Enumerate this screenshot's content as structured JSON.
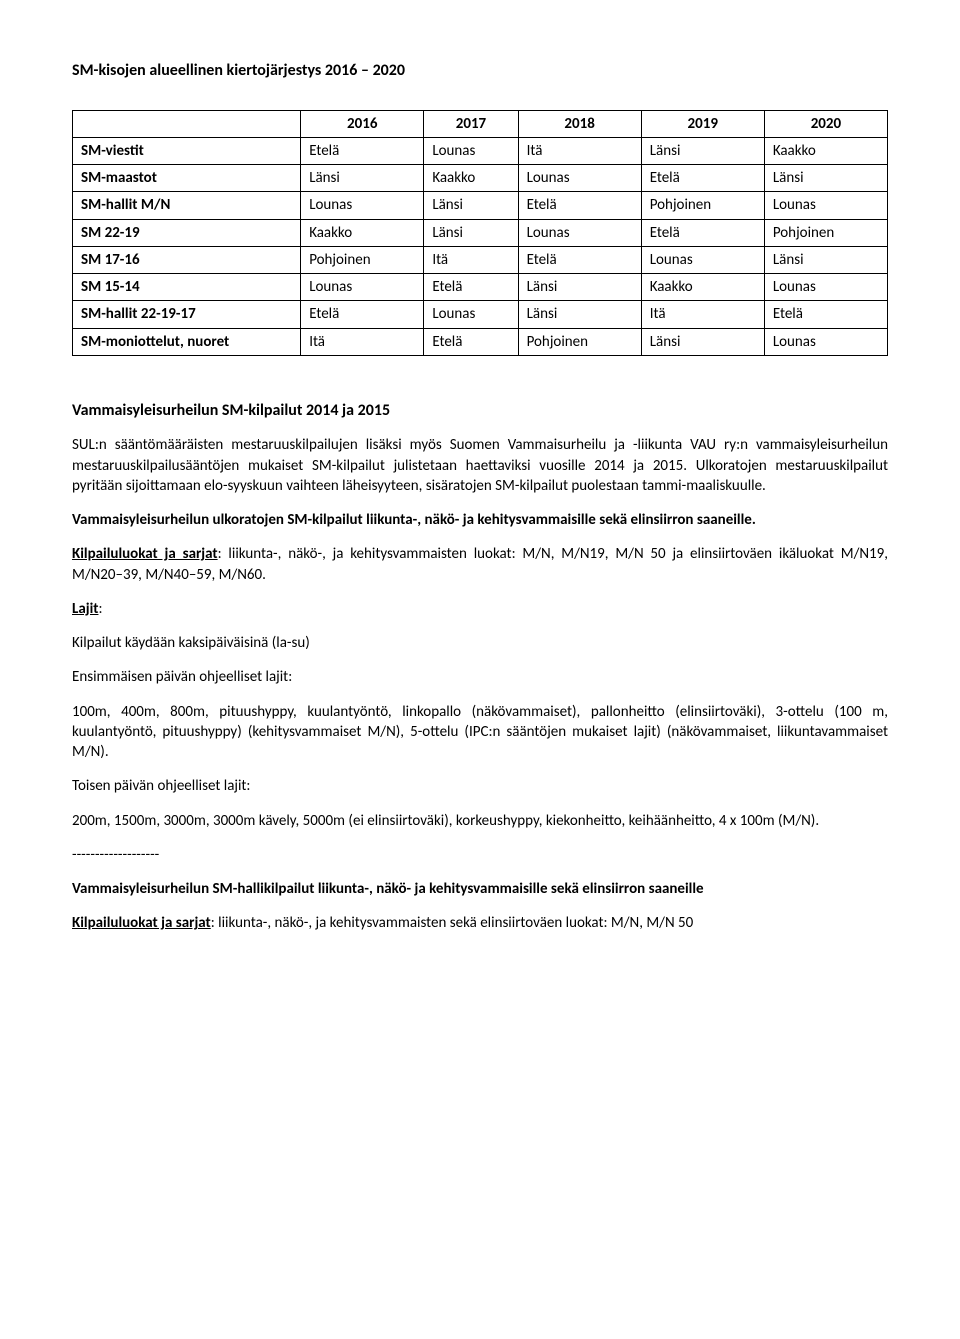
{
  "title": "SM-kisojen alueellinen kiertojärjestys 2016 – 2020",
  "table": {
    "columns": [
      "",
      "2016",
      "2017",
      "2018",
      "2019",
      "2020"
    ],
    "rows": [
      [
        "SM-viestit",
        "Etelä",
        "Lounas",
        "Itä",
        "Länsi",
        "Kaakko"
      ],
      [
        "SM-maastot",
        "Länsi",
        "Kaakko",
        "Lounas",
        "Etelä",
        "Länsi"
      ],
      [
        "SM-hallit M/N",
        "Lounas",
        "Länsi",
        "Etelä",
        "Pohjoinen",
        "Lounas"
      ],
      [
        "SM 22-19",
        "Kaakko",
        "Länsi",
        "Lounas",
        "Etelä",
        "Pohjoinen"
      ],
      [
        "SM 17-16",
        "Pohjoinen",
        "Itä",
        "Etelä",
        "Lounas",
        "Länsi"
      ],
      [
        "SM 15-14",
        "Lounas",
        "Etelä",
        "Länsi",
        "Kaakko",
        "Lounas"
      ],
      [
        "SM-hallit 22-19-17",
        "Etelä",
        "Lounas",
        "Länsi",
        "Itä",
        "Etelä"
      ],
      [
        "SM-moniottelut, nuoret",
        "Itä",
        "Etelä",
        "Pohjoinen",
        "Länsi",
        "Lounas"
      ]
    ],
    "border_color": "#000000"
  },
  "section1": {
    "heading": "Vammaisyleisurheilun SM-kilpailut 2014 ja 2015",
    "para1": "SUL:n sääntömääräisten mestaruuskilpailujen lisäksi myös Suomen Vammaisurheilu ja -liikunta VAU ry:n vammaisyleisurheilun mestaruuskilpailusääntöjen mukaiset SM-kilpailut julistetaan haettaviksi vuosille 2014 ja 2015. Ulkoratojen mestaruuskilpailut pyritään sijoittamaan elo-syyskuun vaihteen läheisyyteen, sisäratojen SM-kilpailut puolestaan tammi-maaliskuulle.",
    "para2_bold": "Vammaisyleisurheilun ulkoratojen SM-kilpailut liikunta-, näkö- ja kehitysvammaisille sekä elinsiirron saaneille.",
    "para3_lead": "Kilpailuluokat ja sarjat",
    "para3_rest": ": liikunta-, näkö-, ja kehitysvammaisten luokat: M/N, M/N19, M/N 50 ja elinsiirtoväen ikäluokat M/N19, M/N20–39, M/N40–59, M/N60.",
    "lajit_label": "Lajit",
    "lajit_colon": ":",
    "para4": "Kilpailut käydään kaksipäiväisinä (la-su)",
    "para5": "Ensimmäisen päivän ohjeelliset lajit:",
    "para6": "100m, 400m, 800m, pituushyppy, kuulantyöntö, linkopallo (näkövammaiset), pallonheitto (elinsiirtoväki), 3-ottelu (100 m, kuulantyöntö, pituushyppy) (kehitysvammaiset M/N), 5-ottelu (IPC:n sääntöjen mukaiset lajit) (näkövammaiset, liikuntavammaiset M/N).",
    "para7": "Toisen päivän ohjeelliset lajit:",
    "para8": "200m, 1500m, 3000m, 3000m kävely, 5000m (ei elinsiirtoväki), korkeushyppy, kiekonheitto, keihäänheitto, 4 x 100m (M/N).",
    "separator": "-------------------",
    "para9_bold": "Vammaisyleisurheilun SM-hallikilpailut liikunta-, näkö- ja kehitysvammaisille sekä elinsiirron saaneille",
    "para10_lead": "Kilpailuluokat ja sarjat",
    "para10_rest": ": liikunta-, näkö-, ja kehitysvammaisten sekä elinsiirtoväen luokat: M/N, M/N 50"
  }
}
